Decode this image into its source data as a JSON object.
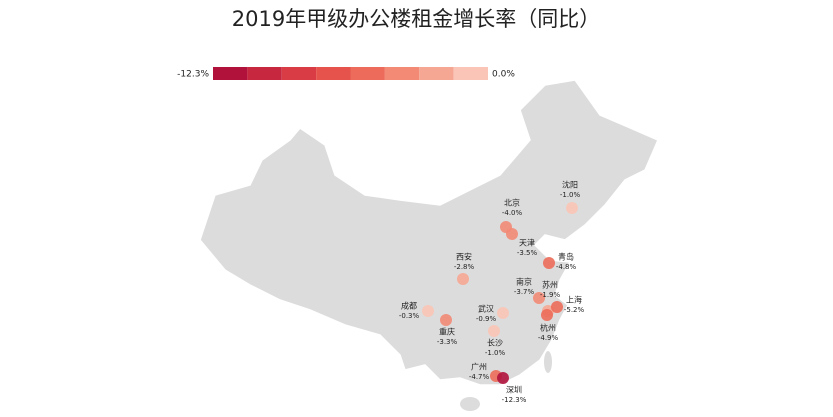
{
  "chart_data": {
    "type": "map",
    "title": "2019年甲级办公楼租金增长率（同比）",
    "colorbar": {
      "range": [
        {
          "value": -12.3,
          "label": "-12.3%"
        },
        {
          "value": 0,
          "label": "0.0%"
        }
      ],
      "colors": [
        "#b0123c",
        "#c8283f",
        "#d93c45",
        "#e5534c",
        "#ec6b5a",
        "#f28a75",
        "#f6a793",
        "#fac5b6"
      ]
    },
    "categories": [
      "北京",
      "天津",
      "沈阳",
      "青岛",
      "西安",
      "南京",
      "苏州",
      "上海",
      "杭州",
      "成都",
      "重庆",
      "武汉",
      "长沙",
      "广州",
      "深圳"
    ],
    "values": [
      -4.0,
      -3.5,
      -1.0,
      -4.8,
      -2.8,
      -3.7,
      -1.9,
      -5.2,
      -4.9,
      -0.3,
      -3.3,
      -0.9,
      -1.0,
      -4.7,
      -12.3
    ],
    "value_labels": [
      "-4.0%",
      "-3.5%",
      "-1.0%",
      "-4.8%",
      "-2.8%",
      "-3.7%",
      "-1.9%",
      "-5.2%",
      "-4.9%",
      "-0.3%",
      "-3.3%",
      "-0.9%",
      "-1.0%",
      "-4.7%",
      "-12.3%"
    ]
  }
}
